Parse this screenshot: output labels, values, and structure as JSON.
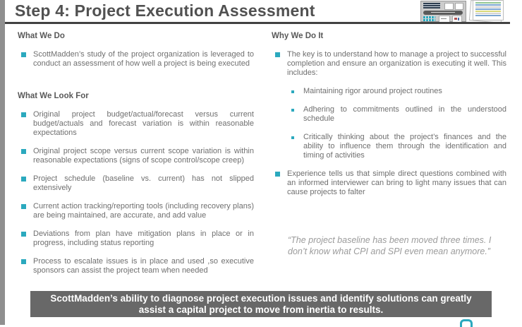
{
  "header": {
    "title": "Step 4: Project Execution Assessment"
  },
  "left_column": {
    "what_we_do": {
      "heading": "What We Do",
      "bullets": [
        "ScottMadden’s study of the project organization is leveraged to conduct an assessment of how well a project is being executed"
      ]
    },
    "what_we_look_for": {
      "heading": "What We Look For",
      "bullets": [
        "Original project budget/actual/forecast versus current budget/actuals and forecast variation is within reasonable expectations",
        "Original project scope versus current scope variation is within reasonable expectations (signs of scope control/scope creep)",
        "Project schedule (baseline vs. current) has not slipped extensively",
        "Current action tracking/reporting tools (including recovery plans) are being maintained, are accurate, and add value",
        "Deviations from plan have mitigation plans in place or in progress, including status reporting",
        "Process to escalate issues is in place and used ,so executive sponsors can assist the project team when needed"
      ]
    }
  },
  "right_column": {
    "why_we_do_it": {
      "heading": "Why We Do It",
      "bullets": [
        "The key is to understand how to manage a project to successful completion and ensure an organization is executing it well. This includes:",
        "Experience tells us that simple direct questions combined with an informed interviewer can bring to light many issues that can cause projects to falter"
      ],
      "sub_bullets": [
        "Maintaining rigor around project routines",
        "Adhering to commitments outlined in the understood schedule",
        "Critically thinking about the project’s finances and the ability to influence them through the identification and timing of activities"
      ]
    },
    "quote": "“The project baseline has been moved three times. I don’t know what CPI and SPI even mean anymore.”"
  },
  "footer": {
    "banner_text": "ScottMadden’s ability to diagnose project execution issues and identify solutions can greatly assist a capital project to move from inertia to results."
  },
  "colors": {
    "accent_teal": "#2BA9BE",
    "heading_gray": "#595959",
    "body_gray": "#6F6F6F",
    "banner_background": "#686868",
    "quote_gray": "#9B9B9B"
  }
}
